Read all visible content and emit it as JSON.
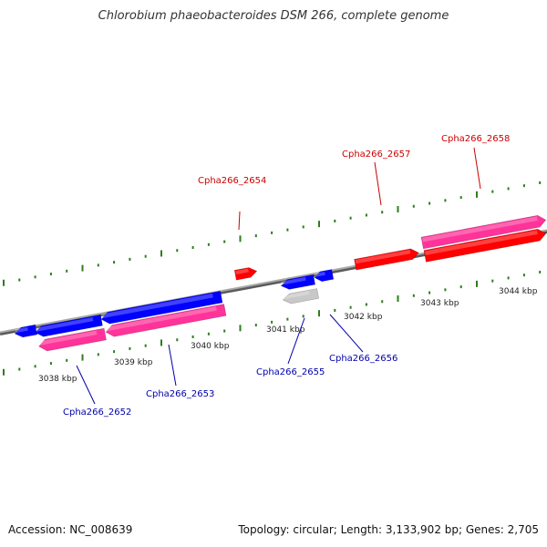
{
  "title": "Chlorobium phaeobacteroides DSM 266, complete genome",
  "footer": {
    "accession": "Accession: NC_008639",
    "info": "Topology: circular; Length: 3,133,902 bp; Genes: 2,705"
  },
  "colors": {
    "axis": "#808080",
    "tick": "#2e7d1e",
    "gene_forward": "#ff0000",
    "gene_reverse": "#0000ff",
    "cds_pink": "#ff3399",
    "gene_gray": "#c8c8c8",
    "label_forward": "#cc0000",
    "label_reverse": "#0000aa",
    "scale_label": "#222222"
  },
  "scale_labels": [
    {
      "text": "3038 kbp"
    },
    {
      "text": "3039 kbp"
    },
    {
      "text": "3040 kbp"
    },
    {
      "text": "3041 kbp"
    },
    {
      "text": "3042 kbp"
    },
    {
      "text": "3043 kbp"
    },
    {
      "text": "3044 kbp"
    }
  ],
  "gene_labels": [
    {
      "text": "Cpha266_2652",
      "strand": "reverse"
    },
    {
      "text": "Cpha266_2653",
      "strand": "reverse"
    },
    {
      "text": "Cpha266_2654",
      "strand": "forward"
    },
    {
      "text": "Cpha266_2655",
      "strand": "reverse"
    },
    {
      "text": "Cpha266_2656",
      "strand": "reverse"
    },
    {
      "text": "Cpha266_2657",
      "strand": "forward"
    },
    {
      "text": "Cpha266_2658",
      "strand": "forward"
    }
  ]
}
